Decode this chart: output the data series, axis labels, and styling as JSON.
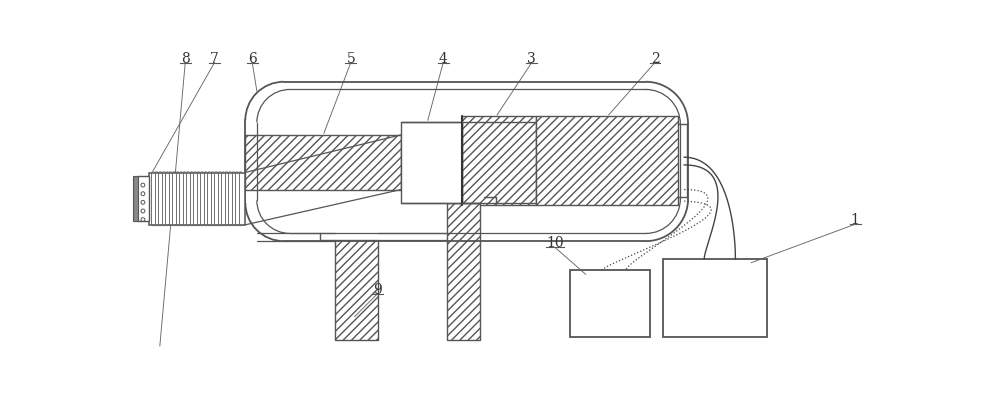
{
  "bg_color": "#ffffff",
  "lc": "#555555",
  "lw": 1.0,
  "label_fs": 10,
  "label_color": "#333333"
}
